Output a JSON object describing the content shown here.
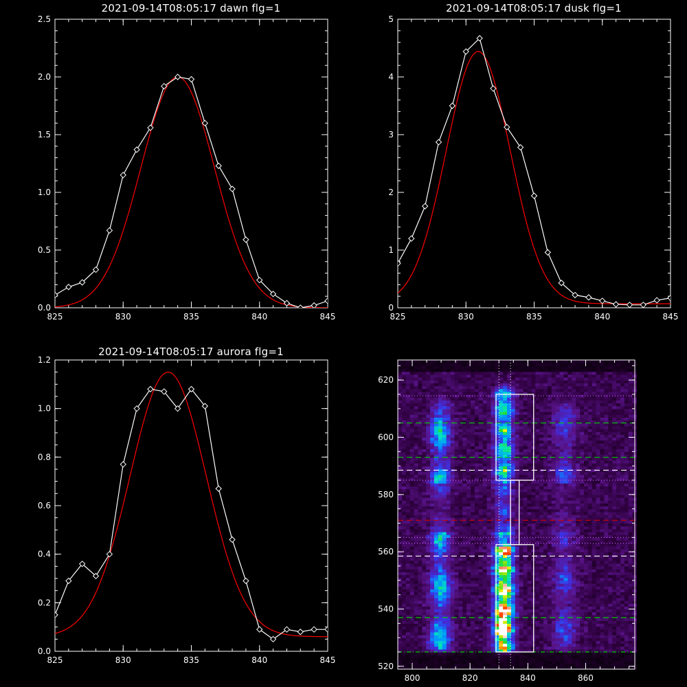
{
  "chart_data": [
    {
      "type": "line",
      "title": "2021-09-14T08:05:17 dawn flg=1",
      "xlim": [
        825,
        845
      ],
      "ylim": [
        0,
        2.5
      ],
      "xticks": [
        "825",
        "830",
        "835",
        "840",
        "845"
      ],
      "xtick_values": [
        825,
        830,
        835,
        840,
        845
      ],
      "yticks": [
        "0.0",
        "0.5",
        "1.0",
        "1.5",
        "2.0",
        "2.5"
      ],
      "ytick_values": [
        0,
        0.5,
        1.0,
        1.5,
        2.0,
        2.5
      ],
      "series": [
        {
          "color": "#ffffff",
          "marker": "diamond",
          "x": [
            825,
            826,
            827,
            828,
            829,
            830,
            831,
            832,
            833,
            834,
            835,
            836,
            837,
            838,
            839,
            840,
            841,
            842,
            843,
            844,
            845
          ],
          "y": [
            0.11,
            0.18,
            0.22,
            0.33,
            0.67,
            1.15,
            1.37,
            1.56,
            1.92,
            2.0,
            1.98,
            1.6,
            1.23,
            1.03,
            0.59,
            0.24,
            0.12,
            0.04,
            0.0,
            0.02,
            0.06
          ]
        },
        {
          "color": "#ff0000",
          "model": "gaussian",
          "amplitude": 2.0,
          "center": 834.0,
          "sigma": 2.7,
          "offset": 0.0
        }
      ]
    },
    {
      "type": "line",
      "title": "2021-09-14T08:05:17 dusk flg=1",
      "xlim": [
        825,
        845
      ],
      "ylim": [
        0,
        5
      ],
      "xticks": [
        "825",
        "830",
        "835",
        "840",
        "845"
      ],
      "xtick_values": [
        825,
        830,
        835,
        840,
        845
      ],
      "yticks": [
        "0",
        "1",
        "2",
        "3",
        "4",
        "5"
      ],
      "ytick_values": [
        0,
        1,
        2,
        3,
        4,
        5
      ],
      "series": [
        {
          "color": "#ffffff",
          "marker": "diamond",
          "x": [
            825,
            826,
            827,
            828,
            829,
            830,
            831,
            832,
            833,
            834,
            835,
            836,
            837,
            838,
            839,
            840,
            841,
            842,
            843,
            844,
            845
          ],
          "y": [
            0.77,
            1.2,
            1.76,
            2.87,
            3.5,
            4.44,
            4.67,
            3.8,
            3.13,
            2.78,
            1.94,
            0.96,
            0.43,
            0.22,
            0.18,
            0.12,
            0.06,
            0.05,
            0.05,
            0.13,
            0.17
          ]
        },
        {
          "color": "#ff0000",
          "model": "gaussian",
          "amplitude": 4.37,
          "center": 830.9,
          "sigma": 2.35,
          "offset": 0.07
        }
      ]
    },
    {
      "type": "line",
      "title": "2021-09-14T08:05:17 aurora flg=1",
      "xlim": [
        825,
        845
      ],
      "ylim": [
        0,
        1.2
      ],
      "xticks": [
        "825",
        "830",
        "835",
        "840",
        "845"
      ],
      "xtick_values": [
        825,
        830,
        835,
        840,
        845
      ],
      "yticks": [
        "0.0",
        "0.2",
        "0.4",
        "0.6",
        "0.8",
        "1.0",
        "1.2"
      ],
      "ytick_values": [
        0,
        0.2,
        0.4,
        0.6,
        0.8,
        1.0,
        1.2
      ],
      "series": [
        {
          "color": "#ffffff",
          "marker": "diamond",
          "x": [
            825,
            826,
            827,
            828,
            829,
            830,
            831,
            832,
            833,
            834,
            835,
            836,
            837,
            838,
            839,
            840,
            841,
            842,
            843,
            844,
            845
          ],
          "y": [
            0.15,
            0.29,
            0.36,
            0.31,
            0.4,
            0.77,
            1.0,
            1.08,
            1.07,
            1.0,
            1.08,
            1.01,
            0.67,
            0.46,
            0.29,
            0.09,
            0.05,
            0.09,
            0.08,
            0.09,
            0.09
          ]
        },
        {
          "color": "#ff0000",
          "model": "gaussian",
          "amplitude": 1.09,
          "center": 833.3,
          "sigma": 2.8,
          "offset": 0.06
        }
      ]
    },
    {
      "type": "heatmap",
      "title": "",
      "xlim": [
        795,
        877
      ],
      "ylim": [
        519,
        627
      ],
      "xticks": [
        "800",
        "820",
        "840",
        "860"
      ],
      "xtick_values": [
        800,
        820,
        840,
        860
      ],
      "yticks": [
        "520",
        "540",
        "560",
        "580",
        "600",
        "620"
      ],
      "ytick_values": [
        520,
        540,
        560,
        580,
        600,
        620
      ],
      "colormap": "rainbow (black-purple-blue-cyan-green-yellow-red-white)",
      "intensity_bands": [
        {
          "x_center": 809,
          "x_width": 3.5,
          "y_range": [
            527,
            610
          ],
          "peak": 0.45
        },
        {
          "x_center": 831,
          "x_width": 3.2,
          "y_range": [
            527,
            614
          ],
          "peak": 0.95
        },
        {
          "x_center": 852,
          "x_width": 4.0,
          "y_range": [
            527,
            610
          ],
          "peak": 0.22
        }
      ],
      "hot_spot": {
        "x": 830,
        "y": 534
      },
      "boxes": [
        {
          "x": [
            829,
            842
          ],
          "y": [
            585,
            615
          ],
          "color": "#ffffff"
        },
        {
          "x": [
            829,
            842
          ],
          "y": [
            525,
            562.5
          ],
          "color": "#ffffff"
        },
        {
          "x": [
            834,
            837
          ],
          "y": [
            562.5,
            585
          ],
          "color": "#ffffff"
        }
      ],
      "vlines": [
        {
          "x": 830,
          "color": "#ffffff",
          "style": "dotted"
        },
        {
          "x": 834,
          "color": "#ffffff",
          "style": "dotted"
        }
      ],
      "hlines": [
        {
          "y": 614.5,
          "color": "#cc66ff",
          "style": "dotted"
        },
        {
          "y": 605,
          "color": "#00cc00",
          "style": "dashed"
        },
        {
          "y": 593,
          "color": "#00cc00",
          "style": "dashed"
        },
        {
          "y": 588.5,
          "color": "#ffffff",
          "style": "dashed"
        },
        {
          "y": 585,
          "color": "#cc66ff",
          "style": "dotted"
        },
        {
          "y": 571,
          "color": "#cc0000",
          "style": "dashed"
        },
        {
          "y": 565,
          "color": "#cc66ff",
          "style": "dotted"
        },
        {
          "y": 563,
          "color": "#cc66ff",
          "style": "dotted"
        },
        {
          "y": 558.5,
          "color": "#ffffff",
          "style": "dashed"
        },
        {
          "y": 537,
          "color": "#00cc00",
          "style": "dashed"
        },
        {
          "y": 525,
          "color": "#00cc00",
          "style": "dashdot"
        }
      ]
    }
  ]
}
